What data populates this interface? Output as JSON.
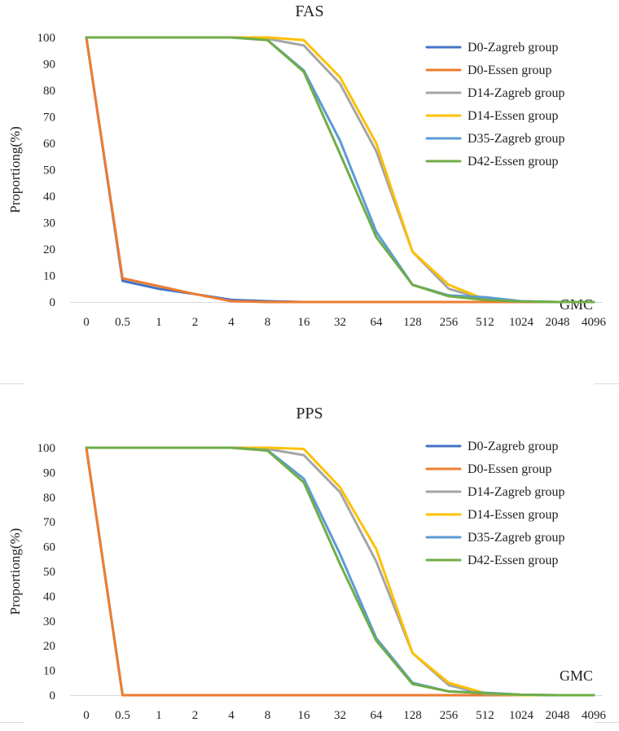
{
  "chart_data": [
    {
      "type": "line",
      "title": "FAS",
      "xlabel": "GMC",
      "ylabel": "Proportiong(%)",
      "ylim": [
        0,
        100
      ],
      "yticks": [
        0,
        10,
        20,
        30,
        40,
        50,
        60,
        70,
        80,
        90,
        100
      ],
      "categories": [
        "0",
        "0.5",
        "1",
        "2",
        "4",
        "8",
        "16",
        "32",
        "64",
        "128",
        "256",
        "512",
        "1024",
        "2048",
        "4096"
      ],
      "legend_position": "top-right",
      "series": [
        {
          "name": "D0-Zagreb group",
          "color": "#4472C4",
          "values": [
            100,
            8,
            5,
            3,
            0.8,
            0.3,
            0,
            0,
            0,
            0,
            0,
            0,
            0,
            0,
            0
          ]
        },
        {
          "name": "D0-Essen group",
          "color": "#ED7D31",
          "values": [
            100,
            9,
            6,
            3,
            0.3,
            0,
            0,
            0,
            0,
            0,
            0,
            0,
            0,
            0,
            0
          ]
        },
        {
          "name": "D14-Zagreb group",
          "color": "#A5A5A5",
          "values": [
            100,
            100,
            100,
            100,
            100,
            99.5,
            97,
            82.5,
            57,
            19,
            5,
            1,
            0.2,
            0,
            0
          ]
        },
        {
          "name": "D14-Essen group",
          "color": "#FFC000",
          "values": [
            100,
            100,
            100,
            100,
            100,
            100,
            99,
            85,
            60,
            19,
            6.5,
            1,
            0.3,
            0,
            0
          ]
        },
        {
          "name": "D35-Zagreb group",
          "color": "#5B9BD5",
          "values": [
            100,
            100,
            100,
            100,
            100,
            99,
            87.5,
            61,
            26.5,
            6.5,
            2.5,
            1.8,
            0.3,
            0,
            0
          ]
        },
        {
          "name": "D42-Essen group",
          "color": "#70AD47",
          "values": [
            100,
            100,
            100,
            100,
            100,
            99,
            87,
            56,
            24.5,
            6.5,
            2.2,
            0.8,
            0.2,
            0,
            0
          ]
        }
      ]
    },
    {
      "type": "line",
      "title": "PPS",
      "xlabel": "GMC",
      "ylabel": "Proportiong(%)",
      "ylim": [
        0,
        100
      ],
      "yticks": [
        0,
        10,
        20,
        30,
        40,
        50,
        60,
        70,
        80,
        90,
        100
      ],
      "categories": [
        "0",
        "0.5",
        "1",
        "2",
        "4",
        "8",
        "16",
        "32",
        "64",
        "128",
        "256",
        "512",
        "1024",
        "2048",
        "4096"
      ],
      "legend_position": "top-right",
      "series": [
        {
          "name": "D0-Zagreb group",
          "color": "#4472C4",
          "values": [
            100,
            0,
            0,
            0,
            0,
            0,
            0,
            0,
            0,
            0,
            0,
            0,
            0,
            0,
            0
          ]
        },
        {
          "name": "D0-Essen group",
          "color": "#ED7D31",
          "values": [
            100,
            0,
            0,
            0,
            0,
            0,
            0,
            0,
            0,
            0,
            0,
            0,
            0,
            0,
            0
          ]
        },
        {
          "name": "D14-Zagreb group",
          "color": "#A5A5A5",
          "values": [
            100,
            100,
            100,
            100,
            100,
            99.5,
            97,
            82,
            54,
            17,
            4,
            0.5,
            0,
            0,
            0
          ]
        },
        {
          "name": "D14-Essen group",
          "color": "#FFC000",
          "values": [
            100,
            100,
            100,
            100,
            100,
            100,
            99.5,
            84,
            59,
            17,
            5,
            0.8,
            0,
            0,
            0
          ]
        },
        {
          "name": "D35-Zagreb group",
          "color": "#5B9BD5",
          "values": [
            100,
            100,
            100,
            100,
            100,
            99,
            87.5,
            57,
            23,
            5,
            1.5,
            1,
            0.2,
            0,
            0
          ]
        },
        {
          "name": "D42-Essen group",
          "color": "#70AD47",
          "values": [
            100,
            100,
            100,
            100,
            100,
            98.8,
            86,
            53,
            22,
            4.5,
            1.5,
            0.8,
            0.2,
            0,
            0
          ]
        }
      ]
    }
  ]
}
